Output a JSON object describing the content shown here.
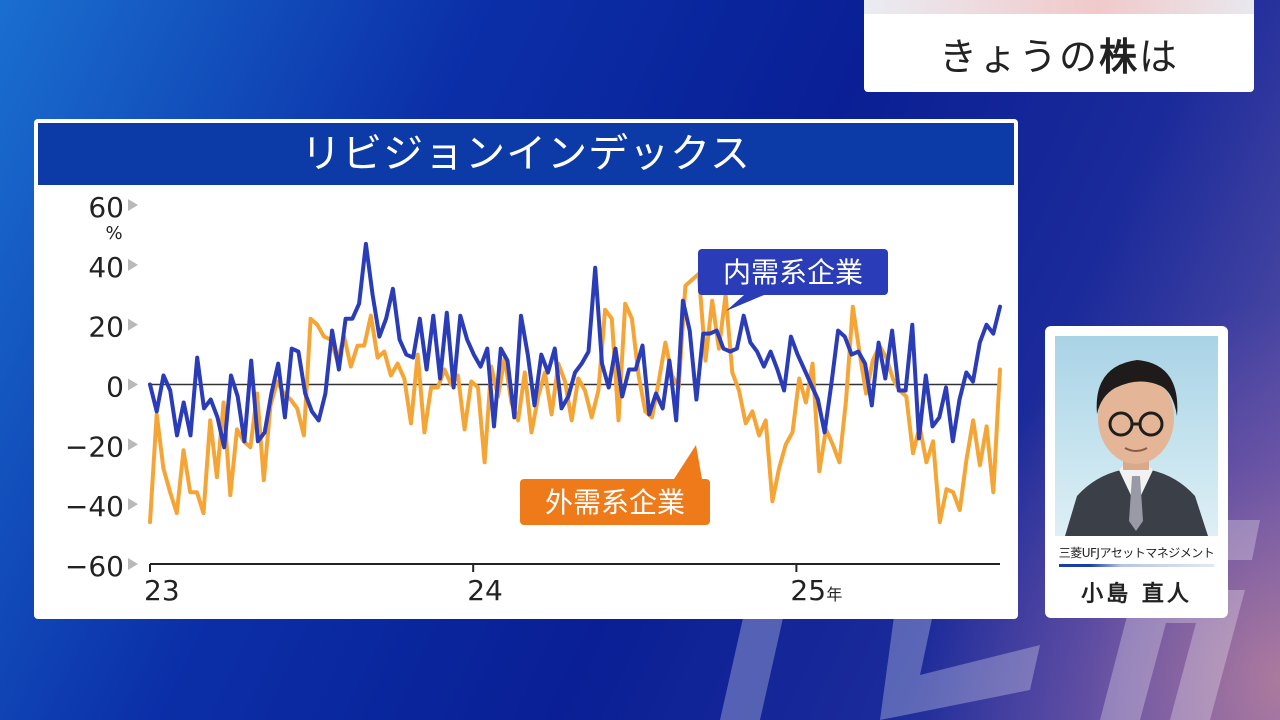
{
  "topic": {
    "prefix": "きょうの",
    "bold": "株",
    "suffix": "は"
  },
  "watermark_text": "テレ東",
  "chart_data": {
    "type": "line",
    "title": "リビジョンインデックス",
    "ylabel": "%",
    "ylim": [
      -60,
      60
    ],
    "yticks": [
      60,
      40,
      20,
      0,
      -20,
      -40,
      -60
    ],
    "ytick_labels": [
      "60",
      "40",
      "20",
      "0",
      "−20",
      "−40",
      "−60"
    ],
    "xticks": [
      {
        "x": 2023.0,
        "label": "23"
      },
      {
        "x": 2024.0,
        "label": "24"
      },
      {
        "x": 2025.0,
        "label": "25",
        "suffix": "年"
      }
    ],
    "xlim": [
      2023.0,
      2025.63
    ],
    "grid": false,
    "series": [
      {
        "name": "内需系企業",
        "color": "#2a3cb8",
        "x_start": 2023.0,
        "x_end": 2025.63,
        "values": [
          0,
          -9,
          3,
          -2,
          -17,
          -6,
          -17,
          9,
          -8,
          -5,
          -11,
          -21,
          3,
          -4,
          -19,
          8,
          -19,
          -16,
          -3,
          7,
          -11,
          12,
          11,
          -3,
          -9,
          -12,
          -3,
          18,
          5,
          22,
          22,
          27,
          47,
          30,
          16,
          22,
          32,
          15,
          10,
          9,
          22,
          5,
          23,
          2,
          24,
          -1,
          23,
          15,
          10,
          6,
          12,
          -14,
          12,
          8,
          -11,
          23,
          10,
          -7,
          10,
          4,
          12,
          -8,
          -4,
          4,
          7,
          11,
          39,
          7,
          -1,
          12,
          -4,
          5,
          5,
          13,
          -10,
          -3,
          -8,
          8,
          -12,
          28,
          18,
          -5,
          17,
          17,
          18,
          12,
          11,
          12,
          23,
          14,
          11,
          6,
          11,
          5,
          -2,
          16,
          10,
          5,
          0,
          -5,
          -16,
          0,
          18,
          16,
          10,
          11,
          7,
          -7,
          14,
          2,
          18,
          -2,
          -2,
          20,
          -18,
          3,
          -14,
          -11,
          -1,
          -19,
          -5,
          4,
          1,
          14,
          20,
          17,
          26
        ]
      },
      {
        "name": "外需系企業",
        "color": "#f5a535",
        "x_start": 2023.0,
        "x_end": 2025.63,
        "values": [
          -46,
          -10,
          -28,
          -36,
          -43,
          -22,
          -36,
          -36,
          -43,
          -12,
          -31,
          -6,
          -37,
          -15,
          -19,
          -21,
          -3,
          -32,
          -7,
          1,
          -3,
          -5,
          -8,
          -17,
          22,
          20,
          16,
          15,
          8,
          16,
          6,
          13,
          13,
          23,
          9,
          11,
          3,
          7,
          2,
          -13,
          10,
          -16,
          -1,
          -1,
          5,
          0,
          3,
          -15,
          1,
          -1,
          -26,
          6,
          -4,
          9,
          -6,
          -12,
          4,
          -16,
          -4,
          4,
          -10,
          7,
          1,
          -12,
          2,
          -2,
          -11,
          -2,
          25,
          22,
          -12,
          27,
          22,
          3,
          -9,
          -11,
          1,
          14,
          3,
          -1,
          33,
          35,
          37,
          8,
          28,
          12,
          30,
          4,
          -2,
          -13,
          -9,
          -17,
          -12,
          -39,
          -28,
          -20,
          -16,
          2,
          -6,
          7,
          -29,
          -15,
          -20,
          -26,
          -5,
          26,
          11,
          -3,
          8,
          13,
          9,
          2,
          -2,
          -4,
          -23,
          -14,
          -26,
          -19,
          -46,
          -35,
          -36,
          -42,
          -25,
          -12,
          -27,
          -14,
          -36,
          5
        ]
      }
    ],
    "annotations": [
      {
        "text": "内需系企業",
        "target_series": "内需系企業",
        "box_color": "#2a3cb8"
      },
      {
        "text": "外需系企業",
        "target_series": "外需系企業",
        "box_color": "#ee7a1a"
      }
    ]
  },
  "profile": {
    "company": "三菱UFJアセットマネジメント",
    "name": "小島 直人"
  }
}
